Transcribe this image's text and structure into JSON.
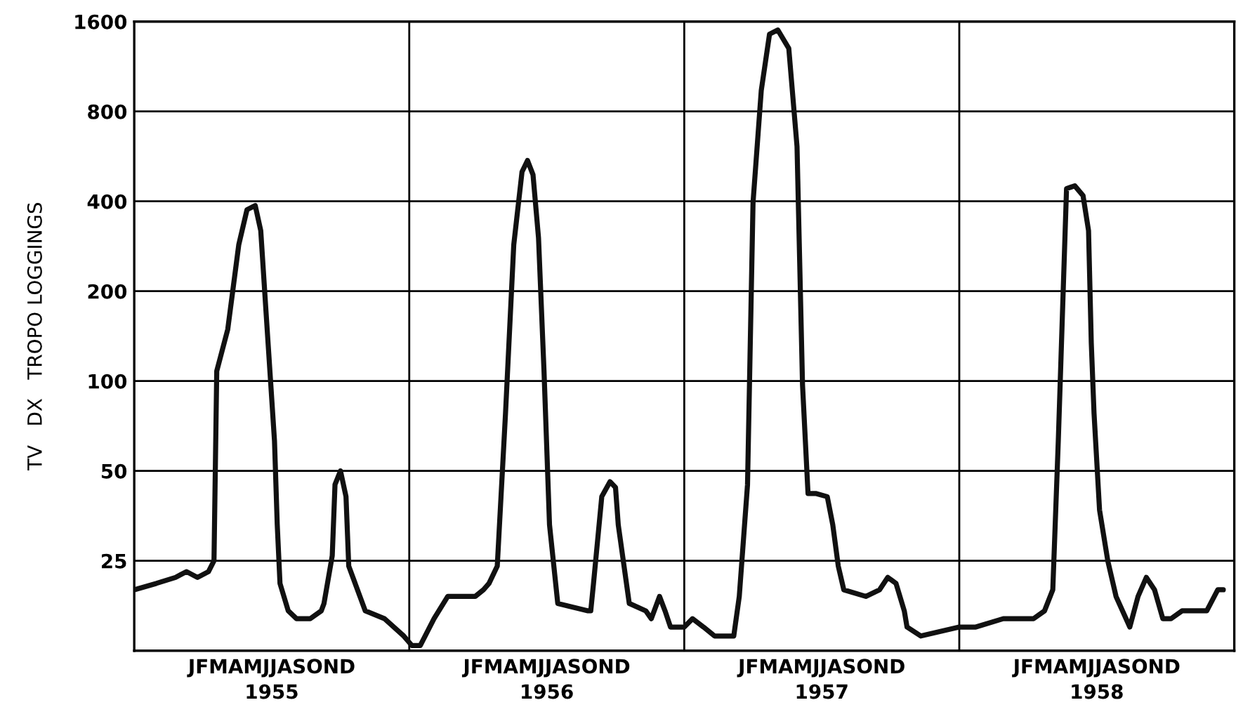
{
  "chart_data": {
    "type": "line",
    "ylabel": "TV   DX   TROPO LOGGINGS",
    "log": "y",
    "grid": "y",
    "marker": "none",
    "line_style": "solid",
    "xlim": [
      1954.5,
      1958.5
    ],
    "ylim": [
      12.5,
      1600
    ],
    "yticks": [
      25,
      50,
      100,
      200,
      400,
      800,
      1600
    ],
    "xticks": [
      1955,
      1956,
      1957,
      1958
    ],
    "annotations": [
      "JFMAMJJASOND",
      "JFMAMJJASOND",
      "JFMAMJJASOND",
      "JFMAMJJASOND"
    ],
    "ref_lines": [
      {
        "axis": "x",
        "value": 1955.5,
        "color": "#000000"
      },
      {
        "axis": "x",
        "value": 1956.5,
        "color": "#000000"
      },
      {
        "axis": "x",
        "value": 1957.5,
        "color": "#000000"
      }
    ],
    "series": [
      {
        "color": "#111111",
        "x": [
          1954.5,
          1954.58,
          1954.65,
          1954.69,
          1954.73,
          1954.77,
          1954.79,
          1954.8,
          1954.84,
          1954.88,
          1954.91,
          1954.94,
          1954.96,
          1954.98,
          1955.01,
          1955.02,
          1955.03,
          1955.06,
          1955.09,
          1955.14,
          1955.18,
          1955.19,
          1955.22,
          1955.23,
          1955.25,
          1955.27,
          1955.28,
          1955.34,
          1955.41,
          1955.48,
          1955.51,
          1955.54,
          1955.59,
          1955.64,
          1955.74,
          1955.77,
          1955.79,
          1955.82,
          1955.85,
          1955.88,
          1955.91,
          1955.93,
          1955.95,
          1955.97,
          1955.99,
          1956.01,
          1956.04,
          1956.15,
          1956.16,
          1956.17,
          1956.2,
          1956.23,
          1956.25,
          1956.26,
          1956.3,
          1956.36,
          1956.38,
          1956.41,
          1956.43,
          1956.45,
          1956.5,
          1956.53,
          1956.57,
          1956.61,
          1956.68,
          1956.7,
          1956.73,
          1956.75,
          1956.78,
          1956.81,
          1956.84,
          1956.88,
          1956.91,
          1956.93,
          1956.95,
          1956.98,
          1957.02,
          1957.04,
          1957.06,
          1957.08,
          1957.16,
          1957.21,
          1957.24,
          1957.27,
          1957.3,
          1957.31,
          1957.36,
          1957.5,
          1957.56,
          1957.66,
          1957.77,
          1957.81,
          1957.84,
          1957.86,
          1957.89,
          1957.92,
          1957.95,
          1957.97,
          1957.98,
          1957.99,
          1958.01,
          1958.04,
          1958.07,
          1958.12,
          1958.15,
          1958.18,
          1958.21,
          1958.24,
          1958.27,
          1958.31,
          1958.36,
          1958.4,
          1958.44,
          1958.46
        ],
        "values": [
          20,
          21,
          22,
          23,
          22,
          23,
          25,
          108,
          149,
          286,
          375,
          387,
          319,
          166,
          63,
          33,
          21,
          17,
          16,
          16,
          17,
          18,
          26,
          45,
          50,
          41,
          24,
          17,
          16,
          14,
          13,
          13,
          16,
          19,
          19,
          20,
          21,
          24,
          78,
          286,
          502,
          548,
          491,
          302,
          108,
          33,
          18,
          17,
          17,
          21,
          41,
          46,
          44,
          33,
          18,
          17,
          16,
          19,
          17,
          15,
          15,
          16,
          15,
          14,
          14,
          19,
          45,
          396,
          941,
          1452,
          1500,
          1302,
          610,
          97,
          42,
          42,
          41,
          33,
          24,
          20,
          19,
          20,
          22,
          21,
          17,
          15,
          14,
          15,
          15,
          16,
          16,
          17,
          20,
          63,
          441,
          451,
          418,
          319,
          134,
          78,
          37,
          25,
          19,
          15,
          19,
          22,
          20,
          16,
          16,
          17,
          17,
          17,
          20,
          20
        ]
      }
    ]
  }
}
